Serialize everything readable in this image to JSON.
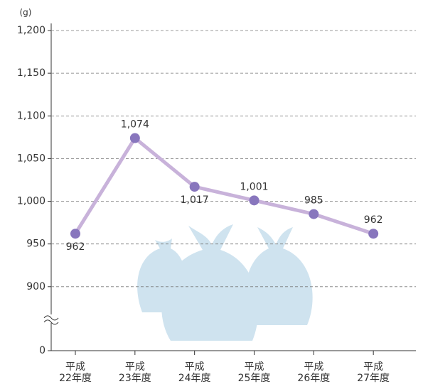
{
  "chart_data": {
    "type": "line",
    "y_label": "(g)",
    "categories": [
      "平成\n22年度",
      "平成\n23年度",
      "平成\n24年度",
      "平成\n25年度",
      "平成\n26年度",
      "平成\n27年度"
    ],
    "series": [
      {
        "color": "#c8b2da",
        "marker_color": "#8876bd",
        "values": [
          962,
          1074,
          1017,
          1001,
          985,
          962
        ],
        "value_labels": [
          "962",
          "1,074",
          "1,017",
          "1,001",
          "985",
          "962"
        ]
      }
    ],
    "ylim": [
      0,
      1200
    ],
    "axis_break": true,
    "yticks": [
      0,
      900,
      950,
      {
        "value": 1000,
        "label": "1,000"
      },
      {
        "value": 1050,
        "label": "1,050"
      },
      {
        "value": 1100,
        "label": "1,100"
      },
      {
        "value": 1150,
        "label": "1,150"
      },
      {
        "value": 1200,
        "label": "1,200"
      }
    ],
    "grid": true
  }
}
